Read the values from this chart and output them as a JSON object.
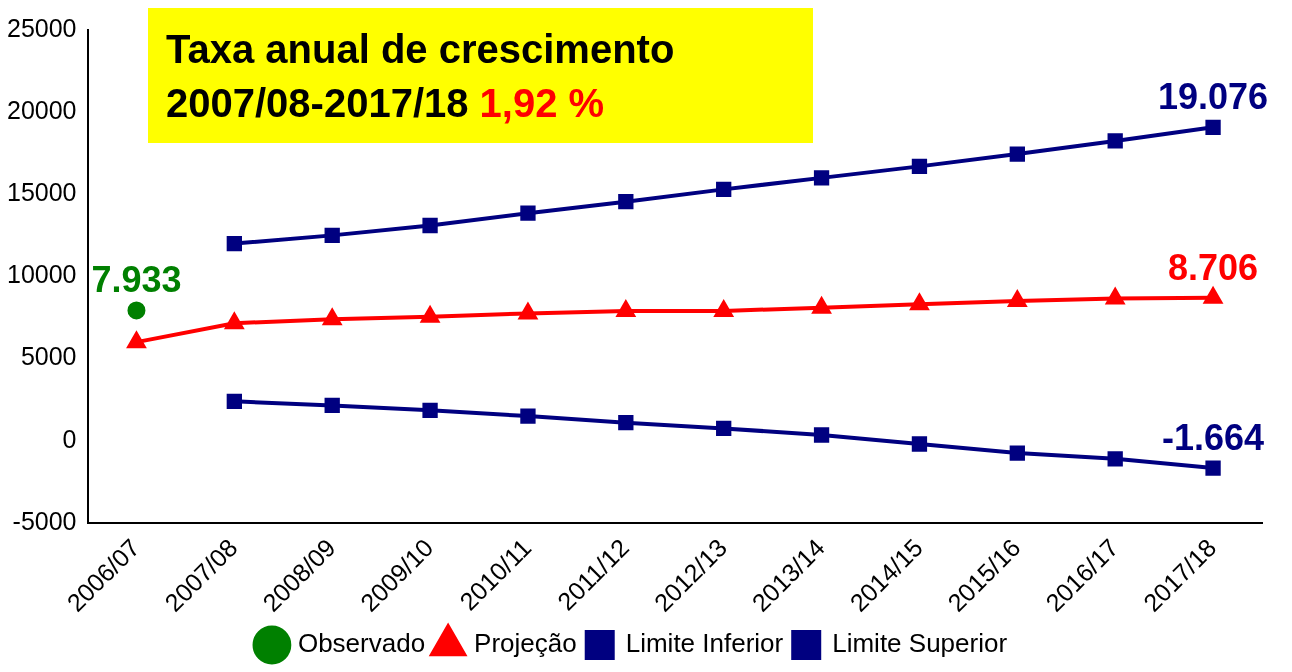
{
  "chart_data": {
    "type": "line",
    "title": "Taxa anual de crescimento",
    "subtitle": "2007/08-2017/18",
    "annotations": [
      "1,92 %",
      {
        "text": "7.933",
        "x": "2006/07",
        "y": 7933
      },
      {
        "text": "8.706",
        "x": "2017/18",
        "y": 8706
      },
      {
        "text": "19.076",
        "x": "2017/18",
        "y": 19076
      },
      {
        "text": "-1.664",
        "x": "2017/18",
        "y": -1664
      }
    ],
    "categories": [
      "2006/07",
      "2007/08",
      "2008/09",
      "2009/10",
      "2010/11",
      "2011/12",
      "2012/13",
      "2013/14",
      "2014/15",
      "2015/16",
      "2016/17",
      "2017/18"
    ],
    "series": [
      {
        "name": "Observado",
        "color": "#008000",
        "marker": "circle",
        "values": [
          7933,
          null,
          null,
          null,
          null,
          null,
          null,
          null,
          null,
          null,
          null,
          null
        ]
      },
      {
        "name": "Projeção",
        "color": "#ff0000",
        "marker": "triangle",
        "values": [
          6000,
          7150,
          7400,
          7550,
          7750,
          7900,
          7900,
          8100,
          8300,
          8500,
          8650,
          8706
        ]
      },
      {
        "name": "Limite Inferior",
        "color": "#000080",
        "marker": "square",
        "values": [
          null,
          2400,
          2150,
          1850,
          1500,
          1100,
          750,
          350,
          -200,
          -750,
          -1100,
          -1664
        ]
      },
      {
        "name": "Limite Superior",
        "color": "#000080",
        "marker": "square",
        "values": [
          null,
          12000,
          12500,
          13100,
          13850,
          14550,
          15300,
          16000,
          16700,
          17450,
          18250,
          19076
        ]
      }
    ],
    "ylim": [
      -5000,
      25000
    ],
    "yticks": [
      -5000,
      0,
      5000,
      10000,
      15000,
      20000,
      25000
    ],
    "grid": false,
    "legend": "bottom"
  }
}
